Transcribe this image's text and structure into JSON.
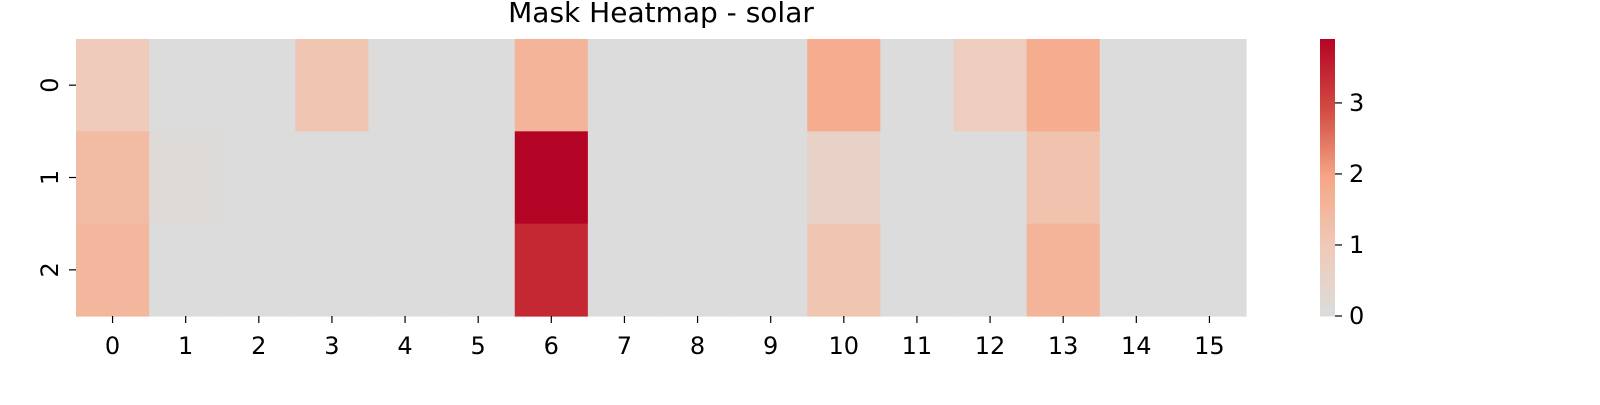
{
  "chart_data": {
    "type": "heatmap",
    "title": "Mask Heatmap - solar",
    "xlabel": "",
    "ylabel": "",
    "x_categories": [
      "0",
      "1",
      "2",
      "3",
      "4",
      "5",
      "6",
      "7",
      "8",
      "9",
      "10",
      "11",
      "12",
      "13",
      "14",
      "15"
    ],
    "y_categories": [
      "0",
      "1",
      "2"
    ],
    "values": [
      [
        0.9,
        0,
        0,
        1.1,
        0,
        0,
        1.6,
        0,
        0,
        0,
        1.8,
        0,
        0.8,
        1.8,
        0,
        0
      ],
      [
        1.4,
        0.1,
        0,
        0,
        0,
        0,
        3.9,
        0,
        0,
        0,
        0.6,
        0,
        0,
        1.2,
        0,
        0
      ],
      [
        1.5,
        0,
        0,
        0,
        0,
        0,
        3.4,
        0,
        0,
        0,
        1.1,
        0,
        0,
        1.6,
        0,
        0
      ]
    ],
    "colormap": "coolwarm-like (grey at 0 to red at max)",
    "colors": {
      "zero": "#dcdcdc",
      "low": "#efcab8",
      "mid": "#f6a787",
      "high": "#d24a40",
      "max": "#b40426"
    },
    "colorbar": {
      "range": [
        0,
        3.9
      ],
      "ticks": [
        0,
        1,
        2,
        3
      ],
      "tick_labels": [
        "0",
        "1",
        "2",
        "3"
      ]
    },
    "grid": false,
    "legend": "colorbar-right"
  }
}
